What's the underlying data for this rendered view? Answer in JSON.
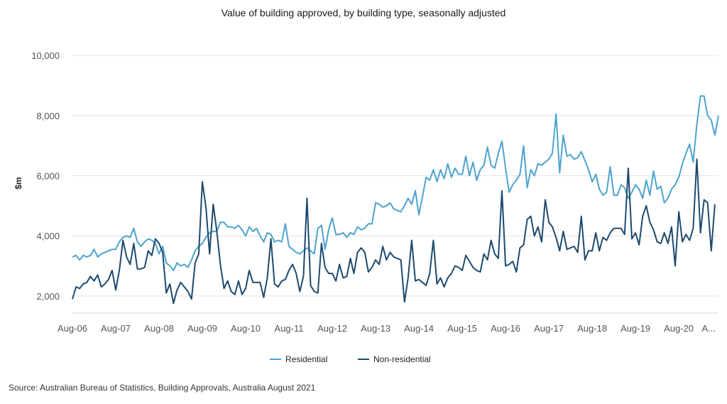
{
  "chart_data": {
    "type": "line",
    "title": "Value of building approved, by building type, seasonally adjusted",
    "ylabel": "$m",
    "xlabel": "",
    "ylim": [
      1500,
      10500
    ],
    "yticks": [
      2000,
      4000,
      6000,
      8000,
      10000
    ],
    "ytick_labels": [
      "2,000",
      "4,000",
      "6,000",
      "8,000",
      "10,000"
    ],
    "xtick_labels": [
      "Aug-06",
      "Aug-07",
      "Aug-08",
      "Aug-09",
      "Aug-10",
      "Aug-11",
      "Aug-12",
      "Aug-13",
      "Aug-14",
      "Aug-15",
      "Aug-16",
      "Aug-17",
      "Aug-18",
      "Aug-19",
      "Aug-20",
      "A..."
    ],
    "x_start": "Aug-06",
    "x_end": "Aug-21",
    "frequency": "monthly",
    "grid": true,
    "legend_position": "bottom",
    "series": [
      {
        "name": "Residential",
        "color": "#4da3cf",
        "values": [
          3300,
          3350,
          3200,
          3350,
          3300,
          3350,
          3550,
          3300,
          3400,
          3450,
          3500,
          3550,
          3550,
          3800,
          3950,
          4000,
          3950,
          4250,
          3800,
          3650,
          3800,
          3900,
          3850,
          3750,
          3400,
          3650,
          3100,
          3000,
          2850,
          3100,
          3000,
          3050,
          2950,
          3200,
          3500,
          3650,
          3750,
          3950,
          4100,
          4150,
          4150,
          4450,
          4450,
          4300,
          4300,
          4250,
          4350,
          4200,
          4000,
          4300,
          4150,
          4250,
          4000,
          3800,
          4100,
          4050,
          3800,
          3850,
          3800,
          4400,
          3650,
          3550,
          3450,
          3400,
          3500,
          3600,
          3500,
          3400,
          4250,
          4350,
          3550,
          4200,
          4600,
          4050,
          4050,
          4100,
          3950,
          4100,
          4050,
          4300,
          4200,
          4250,
          4400,
          4400,
          5100,
          5050,
          4950,
          5000,
          5100,
          4900,
          4850,
          4800,
          5000,
          5250,
          5050,
          5500,
          4700,
          5300,
          5950,
          5850,
          6200,
          5800,
          6200,
          5900,
          6400,
          5950,
          6250,
          6050,
          6050,
          6650,
          6000,
          6450,
          5850,
          6200,
          6350,
          6950,
          6350,
          6250,
          6750,
          7150,
          6250,
          5450,
          5700,
          5850,
          6050,
          7000,
          5600,
          6200,
          6000,
          6400,
          6350,
          6450,
          6550,
          6750,
          8050,
          6100,
          7350,
          6650,
          6700,
          6550,
          6600,
          6800,
          6500,
          6200,
          5800,
          6050,
          5550,
          5350,
          5450,
          6300,
          5350,
          5350,
          5700,
          5600,
          5250,
          5450,
          5700,
          5550,
          5250,
          5850,
          5350,
          6150,
          5550,
          5650,
          5100,
          5250,
          5550,
          5700,
          5950,
          6400,
          6750,
          7050,
          6450,
          7700,
          8650,
          8650,
          8000,
          7850,
          7350,
          8000
        ]
      },
      {
        "name": "Non-residential",
        "color": "#1d4a6e",
        "values": [
          1900,
          2300,
          2250,
          2400,
          2450,
          2650,
          2500,
          2700,
          2300,
          2400,
          2550,
          2850,
          2200,
          2850,
          3850,
          3300,
          3050,
          3750,
          2900,
          2900,
          2950,
          3500,
          3350,
          3900,
          3750,
          3450,
          2100,
          2400,
          1750,
          2200,
          2450,
          2300,
          2150,
          1900,
          3100,
          3400,
          5800,
          4950,
          3400,
          5050,
          4150,
          3050,
          2250,
          2500,
          2150,
          2050,
          2500,
          2050,
          2250,
          2850,
          2450,
          2450,
          2450,
          1950,
          2600,
          3900,
          2400,
          2300,
          2500,
          2550,
          2850,
          3050,
          2750,
          2150,
          2650,
          5250,
          2350,
          2150,
          2100,
          3750,
          2950,
          2750,
          2750,
          2500,
          3050,
          2600,
          2650,
          3250,
          2750,
          3450,
          3600,
          3450,
          2800,
          2950,
          3200,
          3050,
          3650,
          3200,
          3450,
          3300,
          3250,
          3200,
          1800,
          2600,
          3850,
          2500,
          2550,
          2450,
          2350,
          2750,
          3850,
          2400,
          2600,
          2300,
          2600,
          2750,
          3000,
          2950,
          2850,
          3350,
          3150,
          2950,
          2850,
          2800,
          3400,
          3200,
          3850,
          3400,
          3250,
          5500,
          3000,
          3050,
          3150,
          2800,
          3600,
          3700,
          4550,
          4650,
          4000,
          4300,
          3800,
          5200,
          4450,
          4300,
          3950,
          3500,
          4150,
          3550,
          3600,
          3650,
          3450,
          4650,
          3200,
          3500,
          3500,
          4100,
          3500,
          3950,
          3850,
          4100,
          4250,
          4250,
          4250,
          4050,
          6250,
          3900,
          4100,
          3700,
          4650,
          5000,
          4450,
          4200,
          3800,
          3750,
          4100,
          3750,
          4300,
          3000,
          4800,
          3800,
          4050,
          3850,
          4250,
          6550,
          4100,
          5200,
          5100,
          3500,
          5050
        ]
      }
    ],
    "source": "Source: Australian Bureau of Statistics, Building Approvals, Australia August 2021"
  }
}
